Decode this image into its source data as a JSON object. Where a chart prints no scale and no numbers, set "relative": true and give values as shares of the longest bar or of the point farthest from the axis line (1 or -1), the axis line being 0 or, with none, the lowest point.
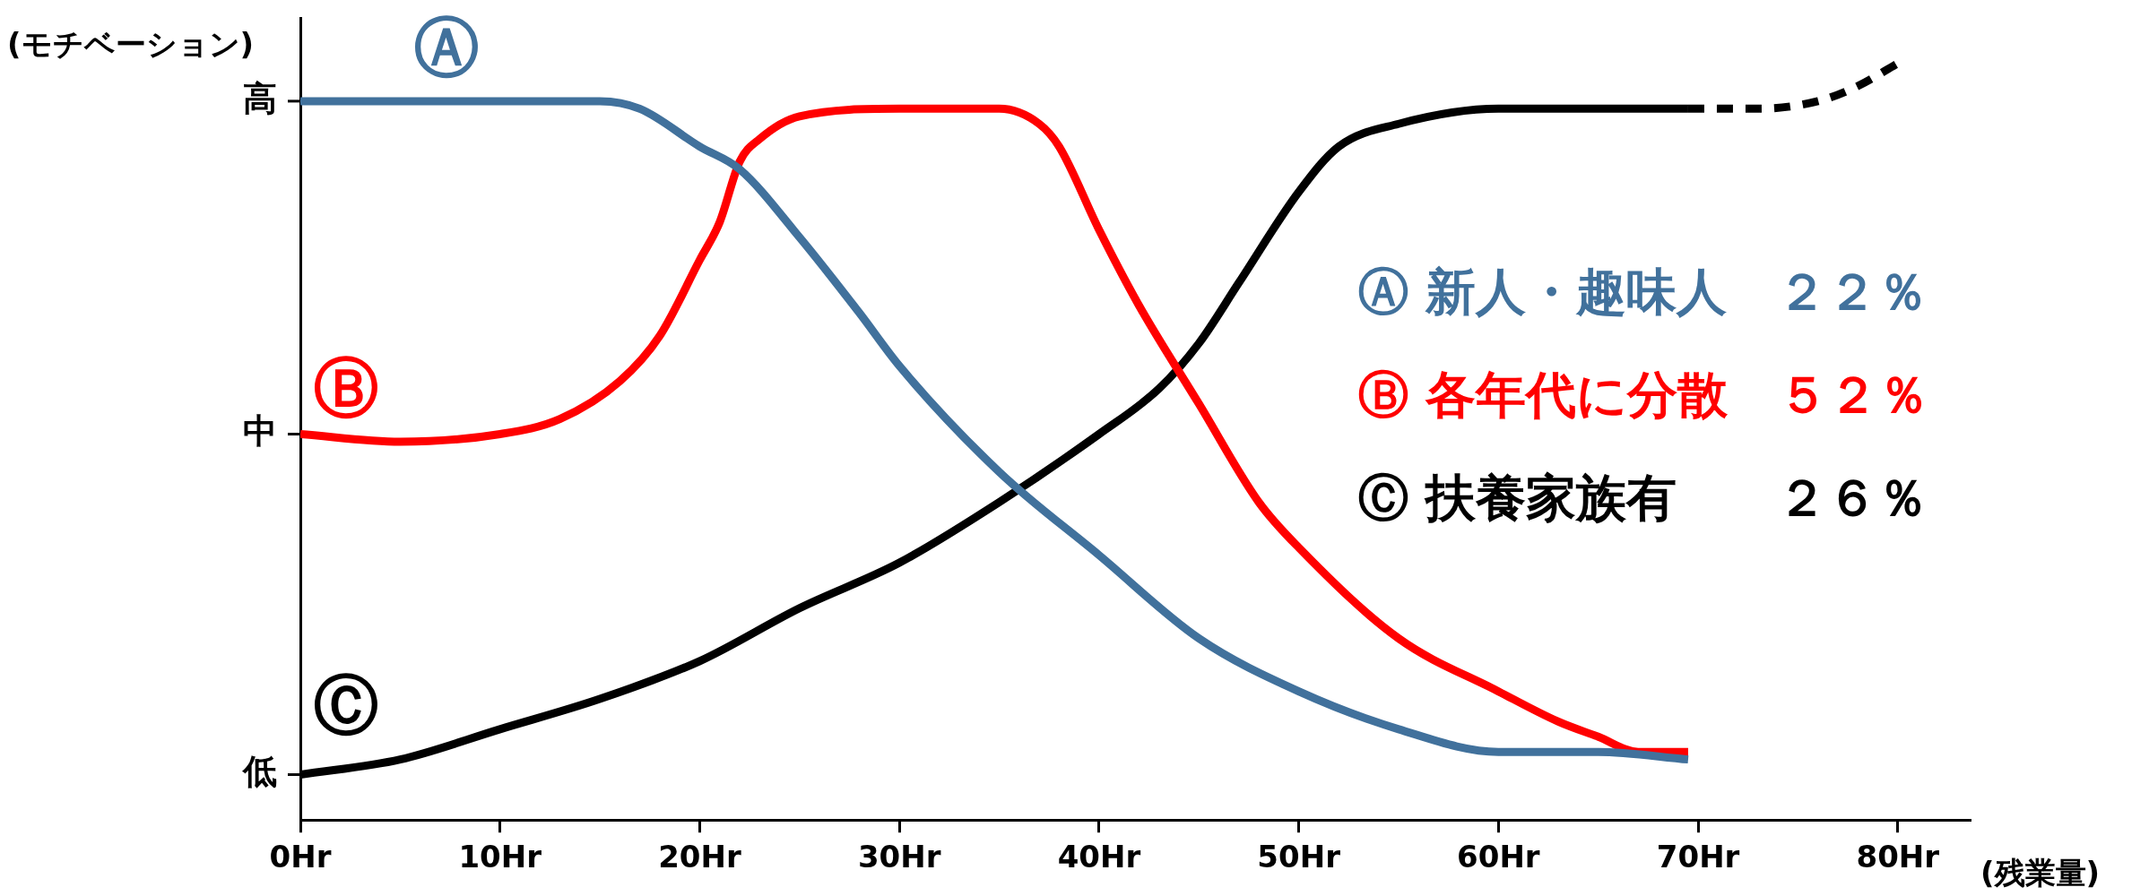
{
  "chart_data": {
    "type": "line",
    "xlabel": "(残業量)",
    "ylabel": "(モチベーション)",
    "relative": true,
    "xlim": [
      0,
      83.6
    ],
    "xticks": [
      {
        "value": 0,
        "label": "0Hr"
      },
      {
        "value": 10,
        "label": "10Hr"
      },
      {
        "value": 20,
        "label": "20Hr"
      },
      {
        "value": 30,
        "label": "30Hr"
      },
      {
        "value": 40,
        "label": "40Hr"
      },
      {
        "value": 50,
        "label": "50Hr"
      },
      {
        "value": 60,
        "label": "60Hr"
      },
      {
        "value": 70,
        "label": "70Hr"
      },
      {
        "value": 80,
        "label": "80Hr"
      }
    ],
    "grid": false,
    "legend": false,
    "marker": "none",
    "series": [
      {
        "name": "Ⓐ",
        "color": "#41719c",
        "line_style": "solid",
        "x": [
          0,
          10,
          15,
          17,
          20,
          22,
          25,
          28,
          30,
          35,
          40,
          45,
          50,
          55,
          60,
          65,
          69.5
        ],
        "values": [
          0.95,
          0.95,
          0.95,
          0.94,
          0.89,
          0.86,
          0.77,
          0.67,
          0.6,
          0.46,
          0.35,
          0.24,
          0.17,
          0.12,
          0.09,
          0.09,
          0.08
        ]
      },
      {
        "name": "Ⓑ",
        "color": "#ff0000",
        "line_style": "solid",
        "x": [
          0,
          5,
          10,
          13,
          16,
          18,
          20,
          21,
          22,
          23,
          25,
          30,
          35,
          37,
          38,
          40,
          42,
          45,
          48,
          50,
          55,
          60,
          63,
          65,
          67,
          69.5
        ],
        "values": [
          0.51,
          0.5,
          0.51,
          0.53,
          0.58,
          0.64,
          0.74,
          0.79,
          0.87,
          0.9,
          0.93,
          0.94,
          0.94,
          0.92,
          0.89,
          0.78,
          0.68,
          0.55,
          0.42,
          0.36,
          0.24,
          0.17,
          0.13,
          0.11,
          0.09,
          0.09
        ]
      },
      {
        "name": "Ⓒ",
        "color": "#000000",
        "line_style": "solid",
        "x": [
          0,
          5,
          10,
          15,
          20,
          25,
          30,
          35,
          40,
          43,
          45,
          47,
          50,
          52,
          55,
          60,
          65,
          69.5
        ],
        "values": [
          0.06,
          0.08,
          0.12,
          0.16,
          0.21,
          0.28,
          0.34,
          0.42,
          0.51,
          0.57,
          0.63,
          0.71,
          0.83,
          0.89,
          0.92,
          0.94,
          0.94,
          0.94
        ]
      },
      {
        "color": "#000000",
        "line_style": "dashed",
        "x": [
          69.5,
          73,
          76,
          78,
          80
        ],
        "values": [
          0.94,
          0.94,
          0.95,
          0.97,
          1
        ]
      }
    ],
    "annotations": [
      "Ⓐ 新人・趣味人　２２％",
      "Ⓑ 各年代に分散　５２％",
      "Ⓒ 扶養家族有　　２６％",
      "高",
      "中",
      "低"
    ]
  }
}
